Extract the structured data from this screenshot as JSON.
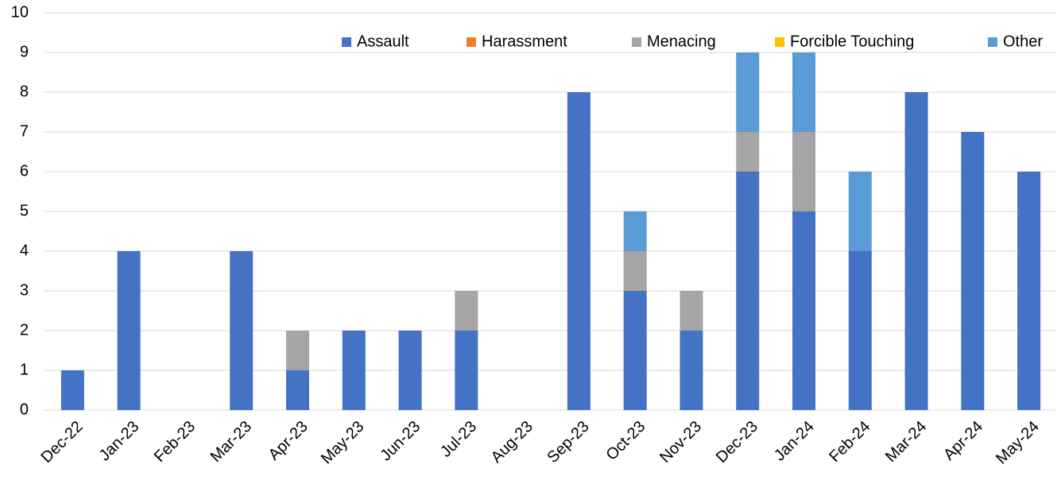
{
  "chart_data": {
    "type": "stacked_bar",
    "categories": [
      "Dec-22",
      "Jan-23",
      "Feb-23",
      "Mar-23",
      "Apr-23",
      "May-23",
      "Jun-23",
      "Jul-23",
      "Aug-23",
      "Sep-23",
      "Oct-23",
      "Nov-23",
      "Dec-23",
      "Jan-24",
      "Feb-24",
      "Mar-24",
      "Apr-24",
      "May-24"
    ],
    "series": [
      {
        "name": "Assault",
        "color": "#4472c4",
        "values": [
          1,
          4,
          0,
          4,
          1,
          2,
          2,
          2,
          0,
          8,
          3,
          2,
          6,
          5,
          4,
          8,
          7,
          6
        ]
      },
      {
        "name": "Harassment",
        "color": "#ed7d31",
        "values": [
          0,
          0,
          0,
          0,
          0,
          0,
          0,
          0,
          0,
          0,
          0,
          0,
          0,
          0,
          0,
          0,
          0,
          0
        ]
      },
      {
        "name": "Menacing",
        "color": "#a5a5a5",
        "values": [
          0,
          0,
          0,
          0,
          1,
          0,
          0,
          1,
          0,
          0,
          1,
          1,
          1,
          2,
          0,
          0,
          0,
          0
        ]
      },
      {
        "name": "Forcible Touching",
        "color": "#ffc000",
        "values": [
          0,
          0,
          0,
          0,
          0,
          0,
          0,
          0,
          0,
          0,
          0,
          0,
          0,
          0,
          0,
          0,
          0,
          0
        ]
      },
      {
        "name": "Other",
        "color": "#5b9bd5",
        "values": [
          0,
          0,
          0,
          0,
          0,
          0,
          0,
          0,
          0,
          0,
          1,
          0,
          2,
          2,
          2,
          0,
          0,
          0
        ]
      }
    ],
    "ylim": [
      0,
      10
    ],
    "yticks": [
      0,
      1,
      2,
      3,
      4,
      5,
      6,
      7,
      8,
      9,
      10
    ],
    "grid": true,
    "legend": "top"
  }
}
